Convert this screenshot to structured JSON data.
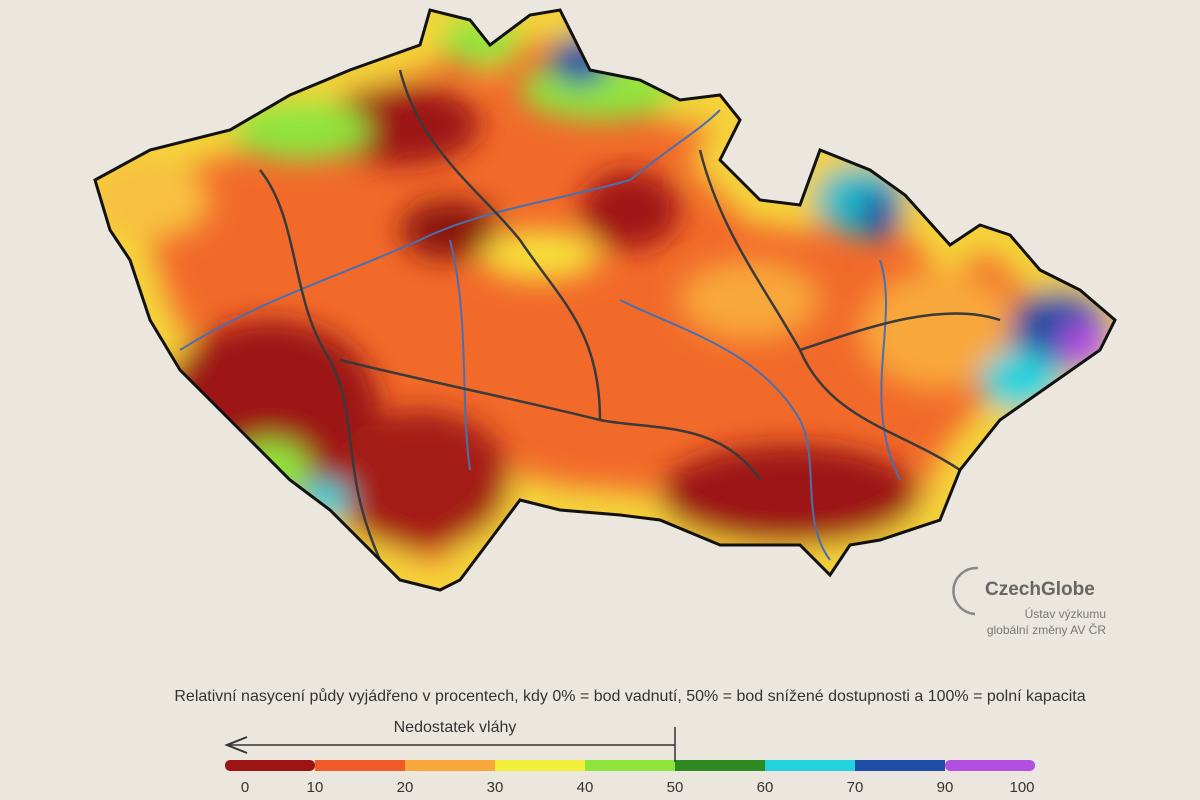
{
  "legend": {
    "caption": "Relativní nasycení půdy vyjádřeno v procentech, kdy 0% = bod vadnutí, 50% = bod snížené dostupnosti a 100% = polní kapacita",
    "arrow_label": "Nedostatek vláhy",
    "deficit_limit": 50,
    "ticks": [
      0,
      10,
      20,
      30,
      40,
      50,
      60,
      70,
      90,
      100
    ],
    "segments": [
      {
        "from": 0,
        "to": 10,
        "color": "#9c1512"
      },
      {
        "from": 10,
        "to": 20,
        "color": "#f05a28"
      },
      {
        "from": 20,
        "to": 30,
        "color": "#f8a73a"
      },
      {
        "from": 30,
        "to": 40,
        "color": "#f2ef3a"
      },
      {
        "from": 40,
        "to": 50,
        "color": "#8fe53c"
      },
      {
        "from": 50,
        "to": 60,
        "color": "#2f8a24"
      },
      {
        "from": 60,
        "to": 70,
        "color": "#22d3dd"
      },
      {
        "from": 70,
        "to": 90,
        "color": "#1f4ea6"
      },
      {
        "from": 90,
        "to": 100,
        "color": "#b24ee0"
      }
    ]
  },
  "logo": {
    "name": "CzechGlobe",
    "line1": "Ústav výzkumu",
    "line2": "globální změny AV ČR"
  }
}
